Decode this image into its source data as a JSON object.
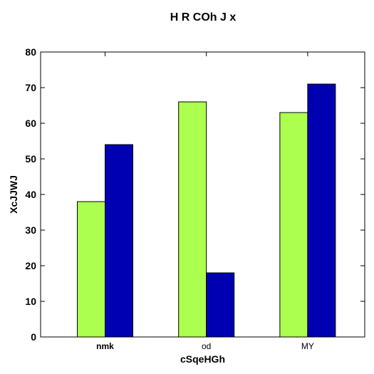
{
  "chart_data": {
    "type": "bar",
    "title": "H R COh  J x",
    "xlabel": "cSqeHGh",
    "ylabel": "XcJJWJ",
    "categories": [
      "nmk",
      "od",
      "MY"
    ],
    "category_bold": [
      true,
      false,
      false
    ],
    "series": [
      {
        "values": [
          38,
          66,
          63
        ],
        "color": "#adff4f"
      },
      {
        "values": [
          54,
          18,
          71
        ],
        "color": "#0000b3"
      }
    ],
    "ylim": [
      0,
      80
    ],
    "yticks": [
      0,
      10,
      20,
      30,
      40,
      50,
      60,
      70,
      80
    ],
    "grid": false,
    "legend": "none"
  }
}
